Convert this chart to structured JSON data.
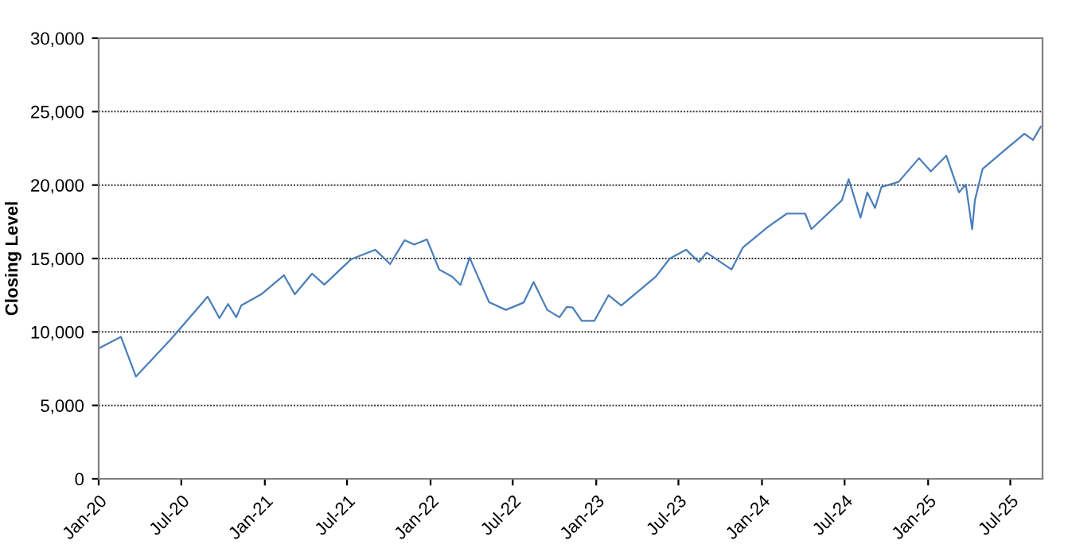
{
  "chart_data": {
    "type": "line",
    "ylabel": "Closing Level",
    "x": [
      "2020-01-02",
      "2020-02-19",
      "2020-03-23",
      "2020-06-08",
      "2020-08-28",
      "2020-09-23",
      "2020-10-12",
      "2020-10-30",
      "2020-11-10",
      "2020-12-24",
      "2021-02-12",
      "2021-03-08",
      "2021-04-15",
      "2021-05-12",
      "2021-07-10",
      "2021-09-01",
      "2021-10-04",
      "2021-11-05",
      "2021-11-26",
      "2021-12-24",
      "2022-01-20",
      "2022-02-18",
      "2022-03-08",
      "2022-03-28",
      "2022-05-10",
      "2022-06-16",
      "2022-07-25",
      "2022-08-16",
      "2022-09-15",
      "2022-10-12",
      "2022-10-28",
      "2022-11-10",
      "2022-11-30",
      "2022-12-28",
      "2023-01-28",
      "2023-02-25",
      "2023-05-12",
      "2023-06-12",
      "2023-07-18",
      "2023-08-15",
      "2023-09-01",
      "2023-10-26",
      "2023-11-20",
      "2024-01-15",
      "2024-02-25",
      "2024-04-05",
      "2024-04-19",
      "2024-06-25",
      "2024-07-10",
      "2024-08-05",
      "2024-08-20",
      "2024-09-06",
      "2024-09-20",
      "2024-10-28",
      "2024-12-12",
      "2025-01-07",
      "2025-02-10",
      "2025-03-10",
      "2025-03-25",
      "2025-04-08",
      "2025-04-14",
      "2025-05-01",
      "2025-06-18",
      "2025-08-01",
      "2025-08-20",
      "2025-09-06"
    ],
    "values": [
      8900,
      9670,
      6960,
      9500,
      12400,
      10940,
      11900,
      11000,
      11800,
      12560,
      13860,
      12560,
      13970,
      13220,
      14950,
      15600,
      14620,
      16250,
      15950,
      16300,
      14250,
      13750,
      13200,
      15060,
      12020,
      11500,
      12000,
      13400,
      11500,
      11000,
      11700,
      11660,
      10760,
      10760,
      12500,
      11800,
      13760,
      15000,
      15600,
      14760,
      15400,
      14250,
      15750,
      17170,
      18060,
      18060,
      17000,
      18960,
      20400,
      17780,
      19500,
      18440,
      19860,
      20220,
      21830,
      20930,
      22000,
      19500,
      20040,
      17000,
      18960,
      21100,
      22360,
      23500,
      23070,
      23970
    ],
    "color": "#4a7ebb",
    "xlim": [
      "2020-01-01",
      "2025-09-10"
    ],
    "xticks": [
      {
        "value": "2020-01-01",
        "label": "Jan-20"
      },
      {
        "value": "2020-07-01",
        "label": "Jul-20"
      },
      {
        "value": "2021-01-01",
        "label": "Jan-21"
      },
      {
        "value": "2021-07-01",
        "label": "Jul-21"
      },
      {
        "value": "2022-01-01",
        "label": "Jan-22"
      },
      {
        "value": "2022-07-01",
        "label": "Jul-22"
      },
      {
        "value": "2023-01-01",
        "label": "Jan-23"
      },
      {
        "value": "2023-07-01",
        "label": "Jul-23"
      },
      {
        "value": "2024-01-01",
        "label": "Jan-24"
      },
      {
        "value": "2024-07-01",
        "label": "Jul-24"
      },
      {
        "value": "2025-01-01",
        "label": "Jan-25"
      },
      {
        "value": "2025-07-01",
        "label": "Jul-25"
      }
    ],
    "ylim": [
      0,
      30000
    ],
    "yticks": [
      {
        "value": 0,
        "label": "0"
      },
      {
        "value": 5000,
        "label": "5,000"
      },
      {
        "value": 10000,
        "label": "10,000"
      },
      {
        "value": 15000,
        "label": "15,000"
      },
      {
        "value": 20000,
        "label": "20,000"
      },
      {
        "value": 25000,
        "label": "25,000"
      },
      {
        "value": 30000,
        "label": "30,000"
      }
    ],
    "grid": "y",
    "line_style": "solid",
    "marker": "none",
    "legend": false
  }
}
